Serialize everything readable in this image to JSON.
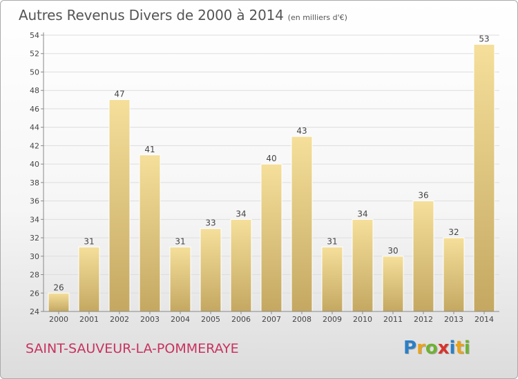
{
  "header": {
    "title": "Autres Revenus Divers de 2000 à 2014",
    "subtitle": "(en milliers d'€)"
  },
  "footer": {
    "commune": "SAINT-SAUVEUR-LA-POMMERAYE",
    "logo_text": "Proxiti",
    "logo_letters": [
      "P",
      "r",
      "o",
      "x",
      "i",
      "t",
      "i"
    ],
    "logo_colors": [
      "#2b7fc6",
      "#e9a31b",
      "#6fb233",
      "#d8322b",
      "#2b7fc6",
      "#e9a31b",
      "#6fb233"
    ]
  },
  "colors": {
    "bar_light": "#f5df9a",
    "bar_dark": "#c4a862",
    "grid": "#dddddd",
    "axis": "#888888",
    "text": "#444444",
    "commune": "#c8325f"
  },
  "chart_data": {
    "type": "bar",
    "categories": [
      "2000",
      "2001",
      "2002",
      "2003",
      "2004",
      "2005",
      "2006",
      "2007",
      "2008",
      "2009",
      "2010",
      "2011",
      "2012",
      "2013",
      "2014"
    ],
    "values": [
      26,
      31,
      47,
      41,
      31,
      33,
      34,
      40,
      43,
      31,
      34,
      30,
      36,
      32,
      53
    ],
    "data_labels": [
      "26",
      "31",
      "47",
      "41",
      "31",
      "33",
      "34",
      "40",
      "43",
      "31",
      "34",
      "30",
      "36",
      "32",
      "53"
    ],
    "yticks": [
      "24",
      "26",
      "28",
      "30",
      "32",
      "34",
      "36",
      "38",
      "40",
      "42",
      "44",
      "46",
      "48",
      "50",
      "52",
      "54"
    ],
    "ylim": [
      24,
      54
    ],
    "ytick_step": 2,
    "grid": true,
    "legend": "none"
  }
}
